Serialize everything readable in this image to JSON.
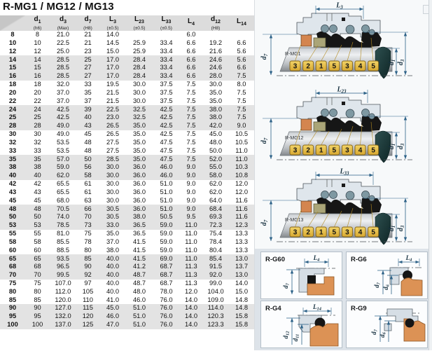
{
  "title": "R-MG1 / MG12 / MG13",
  "table": {
    "headers": [
      {
        "main": "d",
        "sub": "1",
        "note": "(h6)"
      },
      {
        "main": "d",
        "sub": "3",
        "note": "(Max)"
      },
      {
        "main": "d",
        "sub": "7",
        "note": "(H8)"
      },
      {
        "main": "L",
        "sub": "3",
        "note": "(±0.5)"
      },
      {
        "main": "L",
        "sub": "23",
        "note": "(±0.5)"
      },
      {
        "main": "L",
        "sub": "33",
        "note": "(±0.5)"
      },
      {
        "main": "L",
        "sub": "4",
        "note": ""
      },
      {
        "main": "d",
        "sub": "12",
        "note": "(H8)"
      },
      {
        "main": "L",
        "sub": "14",
        "note": ""
      }
    ],
    "rows": [
      [
        "8",
        "8",
        "21.0",
        "21",
        "14.0",
        "",
        "",
        "6.0",
        "",
        ""
      ],
      [
        "10",
        "10",
        "22.5",
        "21",
        "14.5",
        "25.9",
        "33.4",
        "6.6",
        "19.2",
        "6.6"
      ],
      [
        "12",
        "12",
        "25.0",
        "23",
        "15.0",
        "25.9",
        "33.4",
        "6.6",
        "21.6",
        "5.6"
      ],
      [
        "14",
        "14",
        "28.5",
        "25",
        "17.0",
        "28.4",
        "33.4",
        "6.6",
        "24.6",
        "5.6"
      ],
      [
        "15",
        "15",
        "28.5",
        "27",
        "17.0",
        "28.4",
        "33.4",
        "6.6",
        "24.6",
        "6.6"
      ],
      [
        "16",
        "16",
        "28.5",
        "27",
        "17.0",
        "28.4",
        "33.4",
        "6.6",
        "28.0",
        "7.5"
      ],
      [
        "18",
        "18",
        "32.0",
        "33",
        "19.5",
        "30.0",
        "37.5",
        "7.5",
        "30.0",
        "8.0"
      ],
      [
        "20",
        "20",
        "37.0",
        "35",
        "21.5",
        "30.0",
        "37.5",
        "7.5",
        "35.0",
        "7.5"
      ],
      [
        "22",
        "22",
        "37.0",
        "37",
        "21.5",
        "30.0",
        "37.5",
        "7.5",
        "35.0",
        "7.5"
      ],
      [
        "24",
        "24",
        "42.5",
        "39",
        "22.5",
        "32.5",
        "42.5",
        "7.5",
        "38.0",
        "7.5"
      ],
      [
        "25",
        "25",
        "42.5",
        "40",
        "23.0",
        "32.5",
        "42.5",
        "7.5",
        "38.0",
        "7.5"
      ],
      [
        "28",
        "28",
        "49.0",
        "43",
        "26.5",
        "35.0",
        "42.5",
        "7.5",
        "42.0",
        "9.0"
      ],
      [
        "30",
        "30",
        "49.0",
        "45",
        "26.5",
        "35.0",
        "42.5",
        "7.5",
        "45.0",
        "10.5"
      ],
      [
        "32",
        "32",
        "53.5",
        "48",
        "27.5",
        "35.0",
        "47.5",
        "7.5",
        "48.0",
        "10.5"
      ],
      [
        "33",
        "33",
        "53.5",
        "48",
        "27.5",
        "35.0",
        "47.5",
        "7.5",
        "50.0",
        "11.0"
      ],
      [
        "35",
        "35",
        "57.0",
        "50",
        "28.5",
        "35.0",
        "47.5",
        "7.5",
        "52.0",
        "11.0"
      ],
      [
        "38",
        "38",
        "59.0",
        "56",
        "30.0",
        "36.0",
        "46.0",
        "9.0",
        "55.0",
        "10.3"
      ],
      [
        "40",
        "40",
        "62.0",
        "58",
        "30.0",
        "36.0",
        "46.0",
        "9.0",
        "58.0",
        "10.8"
      ],
      [
        "42",
        "42",
        "65.5",
        "61",
        "30.0",
        "36.0",
        "51.0",
        "9.0",
        "62.0",
        "12.0"
      ],
      [
        "43",
        "43",
        "65.5",
        "61",
        "30.0",
        "36.0",
        "51.0",
        "9.0",
        "62.0",
        "12.0"
      ],
      [
        "45",
        "45",
        "68.0",
        "63",
        "30.0",
        "36.0",
        "51.0",
        "9.0",
        "64.0",
        "11.6"
      ],
      [
        "48",
        "48",
        "70.5",
        "66",
        "30.5",
        "36.0",
        "51.0",
        "9.0",
        "68.4",
        "11.6"
      ],
      [
        "50",
        "50",
        "74.0",
        "70",
        "30.5",
        "38.0",
        "50.5",
        "9.5",
        "69.3",
        "11.6"
      ],
      [
        "53",
        "53",
        "78.5",
        "73",
        "33.0",
        "36.5",
        "59.0",
        "11.0",
        "72.3",
        "12.3"
      ],
      [
        "55",
        "55",
        "81.0",
        "75",
        "35.0",
        "36.5",
        "59.0",
        "11.0",
        "75.4",
        "13.3"
      ],
      [
        "58",
        "58",
        "85.5",
        "78",
        "37.0",
        "41.5",
        "59.0",
        "11.0",
        "78.4",
        "13.3"
      ],
      [
        "60",
        "60",
        "88.5",
        "80",
        "38.0",
        "41.5",
        "59.0",
        "11.0",
        "80.4",
        "13.3"
      ],
      [
        "65",
        "65",
        "93.5",
        "85",
        "40.0",
        "41.5",
        "69.0",
        "11.0",
        "85.4",
        "13.0"
      ],
      [
        "68",
        "68",
        "96.5",
        "90",
        "40.0",
        "41.2",
        "68.7",
        "11.3",
        "91.5",
        "13.7"
      ],
      [
        "70",
        "70",
        "99.5",
        "92",
        "40.0",
        "48.7",
        "68.7",
        "11.3",
        "92.0",
        "13.0"
      ],
      [
        "75",
        "75",
        "107.0",
        "97",
        "40.0",
        "48.7",
        "68.7",
        "11.3",
        "99.0",
        "14.0"
      ],
      [
        "80",
        "80",
        "112.0",
        "105",
        "40.0",
        "48.0",
        "78.0",
        "12.0",
        "104.0",
        "15.0"
      ],
      [
        "85",
        "85",
        "120.0",
        "110",
        "41.0",
        "46.0",
        "76.0",
        "14.0",
        "109.0",
        "14.8"
      ],
      [
        "90",
        "90",
        "127.0",
        "115",
        "45.0",
        "51.0",
        "76.0",
        "14.0",
        "114.0",
        "14.8"
      ],
      [
        "95",
        "95",
        "132.0",
        "120",
        "46.0",
        "51.0",
        "76.0",
        "14.0",
        "120.3",
        "15.8"
      ],
      [
        "100",
        "100",
        "137.0",
        "125",
        "47.0",
        "51.0",
        "76.0",
        "14.0",
        "123.3",
        "15.8"
      ]
    ]
  },
  "mg_diagrams": [
    {
      "name": "R-MG1",
      "dim_main": "L",
      "dim_sub": "3",
      "bore_main": "d",
      "bore_sub": "7",
      "shaft_main": "d",
      "shaft_sub": "1",
      "outer_main": "d",
      "outer_sub": "3",
      "part_numbers": [
        "3",
        "2",
        "1",
        "5",
        "3",
        "4",
        "5"
      ]
    },
    {
      "name": "R-MG12",
      "dim_main": "L",
      "dim_sub": "23",
      "bore_main": "d",
      "bore_sub": "7",
      "shaft_main": "d",
      "shaft_sub": "1",
      "outer_main": "d",
      "outer_sub": "3",
      "part_numbers": [
        "3",
        "2",
        "1",
        "5",
        "3",
        "4",
        "5"
      ]
    },
    {
      "name": "R-MG13",
      "dim_main": "L",
      "dim_sub": "33",
      "bore_main": "d",
      "bore_sub": "7",
      "shaft_main": "d",
      "shaft_sub": "1",
      "outer_main": "d",
      "outer_sub": "3",
      "part_numbers": [
        "3",
        "2",
        "1",
        "5",
        "3",
        "4",
        "5"
      ]
    }
  ],
  "seats": [
    {
      "name": "R-G60",
      "dim_main": "L",
      "dim_sub": "4",
      "d_labels": [
        {
          "main": "d",
          "sub": "7"
        }
      ]
    },
    {
      "name": "R-G6",
      "dim_main": "L",
      "dim_sub": "4",
      "d_labels": [
        {
          "main": "d",
          "sub": "7"
        },
        {
          "main": "d",
          "sub": "6"
        }
      ]
    },
    {
      "name": "R-G4",
      "dim_main": "L",
      "dim_sub": "14",
      "d_labels": [
        {
          "main": "d",
          "sub": "12"
        },
        {
          "main": "d",
          "sub": "11"
        }
      ]
    },
    {
      "name": "R-G9",
      "dim_main": "",
      "dim_sub": "",
      "d_labels": [
        {
          "main": "d",
          "sub": "7"
        },
        {
          "main": "d",
          "sub": "6"
        }
      ]
    }
  ],
  "colors": {
    "dimension_lines": "#2d6288",
    "tag_gold": "#e9c84e",
    "seal_orange": "#d4854f",
    "seal_olive": "#aaa578",
    "stripe_gray": "#e3e3e3",
    "header_gray": "#dcdcdc",
    "drop_teal": "#1d3f3f",
    "panel_blue_gray": "#dde3e9"
  }
}
